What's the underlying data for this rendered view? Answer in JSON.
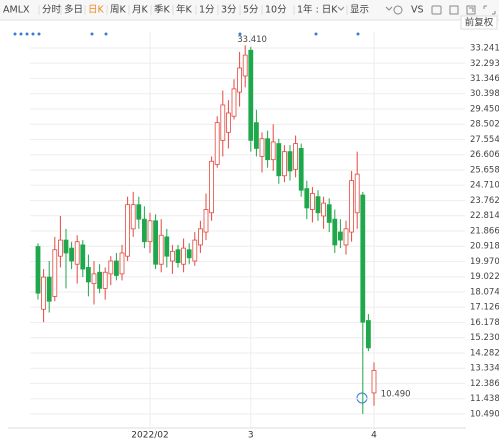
{
  "toolbar": {
    "items": [
      "AMLX",
      "分时",
      "多日",
      "日K",
      "周K",
      "月K",
      "季K",
      "年K",
      "1分",
      "3分",
      "5分",
      "10分",
      "1年 : 日K",
      "显示",
      "VS"
    ],
    "active": 3
  },
  "adjustment": "前复权",
  "chart_data": {
    "type": "candlestick",
    "categories": [
      null,
      null,
      null,
      null,
      null,
      null,
      null,
      null,
      null,
      null,
      null,
      null,
      null,
      null,
      null,
      null,
      null,
      null,
      null,
      null,
      "2022/02",
      null,
      null,
      null,
      null,
      null,
      null,
      null,
      null,
      null,
      null,
      null,
      null,
      null,
      null,
      null,
      null,
      null,
      "3",
      null,
      null,
      null,
      null,
      null,
      null,
      null,
      null,
      null,
      null,
      null,
      null,
      null,
      null,
      null,
      null,
      null,
      null,
      null,
      null,
      null,
      "4"
    ],
    "open": [
      20.9,
      17.0,
      19.0,
      17.8,
      20.3,
      21.3,
      20.8,
      19.8,
      21.0,
      19.6,
      18.6,
      19.3,
      18.3,
      19.2,
      20.0,
      19.2,
      20.3,
      22.0,
      23.5,
      22.6,
      21.2,
      22.5,
      19.8,
      21.5,
      20.0,
      20.7,
      19.8,
      20.7,
      20.0,
      21.0,
      21.8,
      23.0,
      26.0,
      27.5,
      28.0,
      29.0,
      30.5,
      31.5,
      33.1,
      28.6,
      26.5,
      27.6,
      26.3,
      27.3,
      25.3,
      26.8,
      25.7,
      27.0,
      24.5,
      23.2,
      24.0,
      22.8,
      23.5,
      22.6,
      21.8,
      21.0,
      21.8,
      23.0,
      24.1,
      16.3,
      11.8
    ],
    "high": [
      21.1,
      19.5,
      20.0,
      21.5,
      22.8,
      22.0,
      21.2,
      21.6,
      21.3,
      20.4,
      20.0,
      19.8,
      19.6,
      20.3,
      20.5,
      21.0,
      24.0,
      24.3,
      24.0,
      23.4,
      23.0,
      22.9,
      22.6,
      22.0,
      21.0,
      21.0,
      21.4,
      21.1,
      21.8,
      22.5,
      24.2,
      26.5,
      29.0,
      30.6,
      30.0,
      31.3,
      33.0,
      33.41,
      33.3,
      29.4,
      28.0,
      28.1,
      28.5,
      27.6,
      27.2,
      27.2,
      27.8,
      27.3,
      25.0,
      24.6,
      24.4,
      24.0,
      23.9,
      23.2,
      22.6,
      22.5,
      25.6,
      26.8,
      24.3,
      16.7,
      13.7
    ],
    "low": [
      17.6,
      16.2,
      16.8,
      17.5,
      19.6,
      18.3,
      19.5,
      18.6,
      19.0,
      17.8,
      17.3,
      18.0,
      17.6,
      18.5,
      18.8,
      18.8,
      20.0,
      21.5,
      22.0,
      20.8,
      20.5,
      19.5,
      19.3,
      19.6,
      19.2,
      19.6,
      19.3,
      19.8,
      19.7,
      20.5,
      21.3,
      22.5,
      25.8,
      26.5,
      27.0,
      28.8,
      29.6,
      30.8,
      26.8,
      26.5,
      25.5,
      25.8,
      25.6,
      24.8,
      24.9,
      25.0,
      25.2,
      24.0,
      22.6,
      22.4,
      22.5,
      22.0,
      21.8,
      20.5,
      20.8,
      20.4,
      21.2,
      22.0,
      10.49,
      14.4,
      11.0
    ],
    "close": [
      18.0,
      19.0,
      17.5,
      20.7,
      21.3,
      20.5,
      20.0,
      21.2,
      19.5,
      18.7,
      19.2,
      18.3,
      19.3,
      20.0,
      19.1,
      20.5,
      23.5,
      23.5,
      22.6,
      21.2,
      22.5,
      19.8,
      21.6,
      20.3,
      20.6,
      19.9,
      20.8,
      20.2,
      21.3,
      22.0,
      23.2,
      26.2,
      28.6,
      29.7,
      29.2,
      30.7,
      32.0,
      32.8,
      27.5,
      27.0,
      27.6,
      26.3,
      27.4,
      25.3,
      26.8,
      25.6,
      27.3,
      24.4,
      23.3,
      24.2,
      23.0,
      23.6,
      22.4,
      21.0,
      21.3,
      22.0,
      25.0,
      25.4,
      16.2,
      14.6,
      13.2
    ],
    "up_color": "#e5483f",
    "down_color": "#1ea84b",
    "annotations": [
      {
        "value": 33.41,
        "label": "33.410"
      },
      {
        "value": 10.49,
        "label": "10.490"
      }
    ],
    "ylim": [
      9.868,
      34.236
    ],
    "yticks": [
      33.241,
      32.293,
      31.346,
      30.398,
      {
        "value": 29.45,
        "label": "29.450"
      },
      28.502,
      27.554,
      26.606,
      25.658,
      {
        "value": 24.71,
        "label": "24.710"
      },
      23.762,
      22.814,
      21.866,
      20.918,
      {
        "value": 19.97,
        "label": "19.970"
      },
      19.022,
      18.074,
      17.126,
      16.178,
      {
        "value": 15.23,
        "label": "15.230"
      },
      14.282,
      13.334,
      12.386,
      11.438,
      {
        "value": 10.49,
        "label": "10.490"
      }
    ],
    "grid": true
  }
}
